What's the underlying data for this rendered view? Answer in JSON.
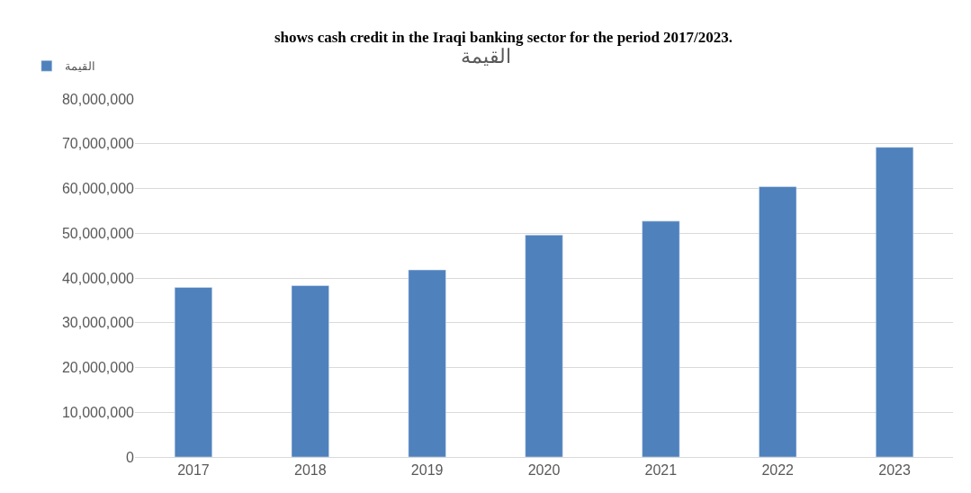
{
  "chart_data": {
    "type": "bar",
    "title": "القيمة",
    "annotations": [
      "shows cash credit in the Iraqi banking sector for the period 2017/2023."
    ],
    "categories": [
      "2017",
      "2018",
      "2019",
      "2020",
      "2021",
      "2022",
      "2023"
    ],
    "series": [
      {
        "name": "القيمة",
        "color": "#4f81bd",
        "values": [
          37900000,
          38300000,
          41800000,
          49600000,
          52700000,
          60400000,
          69200000
        ]
      }
    ],
    "ylim": [
      0,
      80000000
    ],
    "yticks": [
      {
        "value": 0,
        "label": "0"
      },
      {
        "value": 10000000,
        "label": "10,000,000"
      },
      {
        "value": 20000000,
        "label": "20,000,000"
      },
      {
        "value": 30000000,
        "label": "30,000,000"
      },
      {
        "value": 40000000,
        "label": "40,000,000"
      },
      {
        "value": 50000000,
        "label": "50,000,000"
      },
      {
        "value": 60000000,
        "label": "60,000,000"
      },
      {
        "value": 70000000,
        "label": "70,000,000"
      },
      {
        "value": 80000000,
        "label": "80,000,000"
      }
    ],
    "grid": "y",
    "legend": "top left"
  }
}
